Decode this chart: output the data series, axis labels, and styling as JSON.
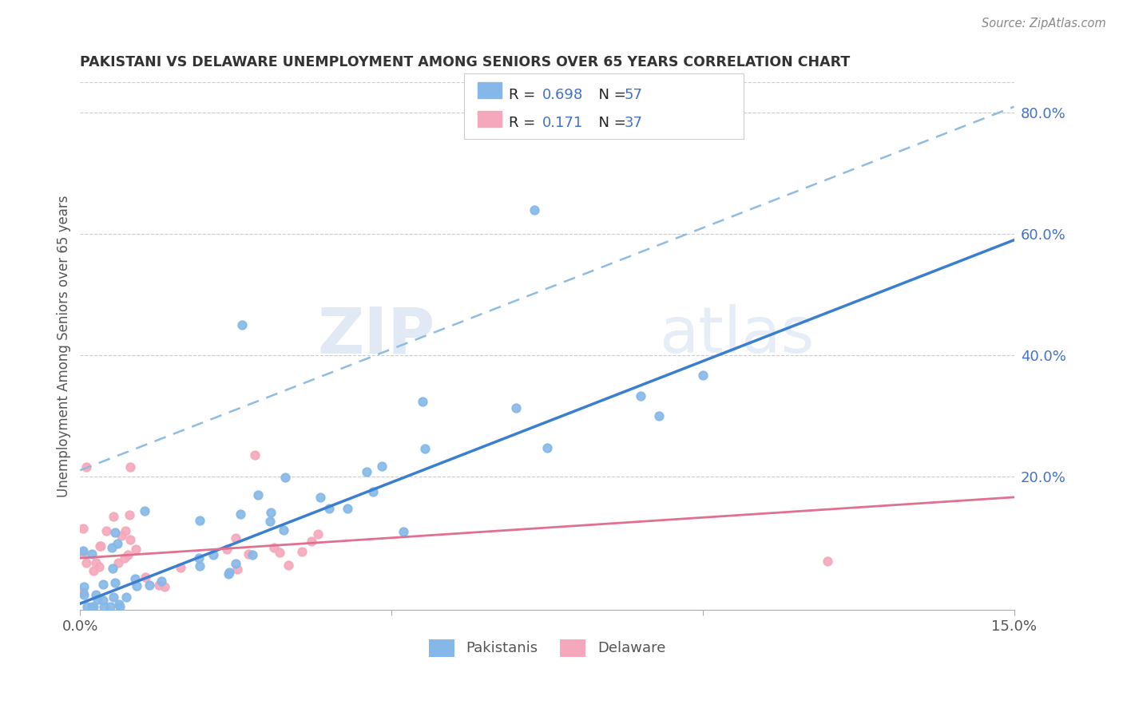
{
  "title": "PAKISTANI VS DELAWARE UNEMPLOYMENT AMONG SENIORS OVER 65 YEARS CORRELATION CHART",
  "source": "Source: ZipAtlas.com",
  "ylabel": "Unemployment Among Seniors over 65 years",
  "pakistani_color": "#85b8e8",
  "delaware_color": "#f5a8bc",
  "regression_blue_color": "#3a7ecf",
  "regression_pink_color": "#e07090",
  "dashed_blue_color": "#90bce0",
  "xlim": [
    0.0,
    0.15
  ],
  "ylim": [
    -0.02,
    0.85
  ],
  "y_ticks_right": [
    0.2,
    0.4,
    0.6,
    0.8
  ],
  "watermark_zip": "ZIP",
  "watermark_atlas": "atlas",
  "legend_label1": "Pakistanis",
  "legend_label2": "Delaware"
}
